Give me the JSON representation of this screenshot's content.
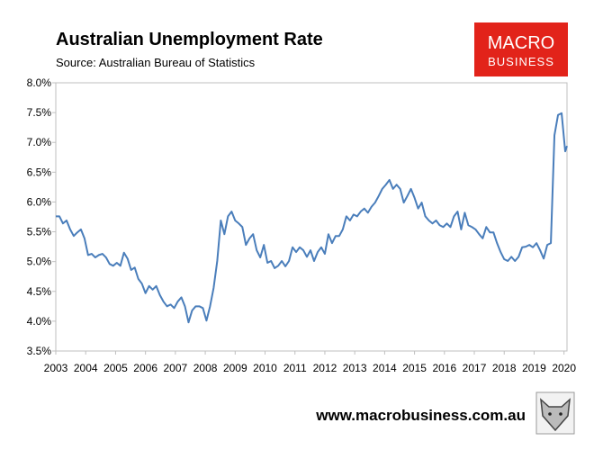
{
  "chart_data": {
    "type": "line",
    "title": "Australian Unemployment Rate",
    "subtitle": "Source: Australian Bureau of Statistics",
    "color": "#4a7ebb",
    "grid": false,
    "xlim": [
      2003,
      2020.1
    ],
    "xticks": [
      2003,
      2004,
      2005,
      2006,
      2007,
      2008,
      2009,
      2010,
      2011,
      2012,
      2013,
      2014,
      2015,
      2016,
      2017,
      2018,
      2019,
      2020
    ],
    "ylim": [
      3.5,
      8
    ],
    "yticks": [
      {
        "value": 3.5,
        "label": "3.5%"
      },
      {
        "value": 4,
        "label": "4.0%"
      },
      {
        "value": 4.5,
        "label": "4.5%"
      },
      {
        "value": 5,
        "label": "5.0%"
      },
      {
        "value": 5.5,
        "label": "5.5%"
      },
      {
        "value": 6,
        "label": "6.0%"
      },
      {
        "value": 6.5,
        "label": "6.5%"
      },
      {
        "value": 7,
        "label": "7.0%"
      },
      {
        "value": 7.5,
        "label": "7.5%"
      },
      {
        "value": 8,
        "label": "8.0%"
      }
    ],
    "x": [
      2003,
      2003.12,
      2003.24,
      2003.36,
      2003.48,
      2003.6,
      2003.72,
      2003.84,
      2003.96,
      2004.08,
      2004.2,
      2004.32,
      2004.44,
      2004.56,
      2004.68,
      2004.8,
      2004.92,
      2005.04,
      2005.16,
      2005.28,
      2005.4,
      2005.52,
      2005.64,
      2005.76,
      2005.88,
      2006,
      2006.12,
      2006.24,
      2006.36,
      2006.48,
      2006.6,
      2006.72,
      2006.84,
      2006.96,
      2007.08,
      2007.2,
      2007.32,
      2007.44,
      2007.56,
      2007.68,
      2007.8,
      2007.92,
      2008.04,
      2008.16,
      2008.28,
      2008.4,
      2008.52,
      2008.64,
      2008.76,
      2008.88,
      2009,
      2009.12,
      2009.24,
      2009.36,
      2009.48,
      2009.6,
      2009.72,
      2009.84,
      2009.96,
      2010.08,
      2010.2,
      2010.32,
      2010.44,
      2010.56,
      2010.68,
      2010.8,
      2010.92,
      2011.04,
      2011.16,
      2011.28,
      2011.4,
      2011.52,
      2011.64,
      2011.76,
      2011.88,
      2012,
      2012.12,
      2012.24,
      2012.36,
      2012.48,
      2012.6,
      2012.72,
      2012.84,
      2012.96,
      2013.08,
      2013.2,
      2013.32,
      2013.44,
      2013.56,
      2013.68,
      2013.8,
      2013.92,
      2014.04,
      2014.16,
      2014.28,
      2014.4,
      2014.52,
      2014.64,
      2014.76,
      2014.88,
      2015,
      2015.12,
      2015.24,
      2015.36,
      2015.48,
      2015.6,
      2015.72,
      2015.84,
      2015.96,
      2016.08,
      2016.2,
      2016.32,
      2016.44,
      2016.56,
      2016.68,
      2016.8,
      2016.92,
      2017.04,
      2017.16,
      2017.28,
      2017.4,
      2017.52,
      2017.64,
      2017.76,
      2017.88,
      2018,
      2018.12,
      2018.24,
      2018.36,
      2018.48,
      2018.6,
      2018.72,
      2018.84,
      2018.96,
      2019.08,
      2019.2,
      2019.32,
      2019.44,
      2019.56,
      2019.68,
      2019.8,
      2019.92,
      2020.04,
      2020.1
    ],
    "values": [
      5.76,
      5.76,
      5.64,
      5.69,
      5.54,
      5.43,
      5.49,
      5.54,
      5.39,
      5.11,
      5.13,
      5.07,
      5.11,
      5.13,
      5.07,
      4.96,
      4.93,
      4.98,
      4.93,
      5.15,
      5.05,
      4.86,
      4.9,
      4.71,
      4.63,
      4.47,
      4.59,
      4.53,
      4.59,
      4.44,
      4.33,
      4.25,
      4.28,
      4.22,
      4.33,
      4.4,
      4.25,
      3.98,
      4.18,
      4.25,
      4.25,
      4.22,
      4.01,
      4.25,
      4.56,
      5.01,
      5.69,
      5.46,
      5.76,
      5.84,
      5.69,
      5.64,
      5.58,
      5.28,
      5.39,
      5.46,
      5.19,
      5.07,
      5.28,
      4.98,
      5.01,
      4.89,
      4.93,
      5.01,
      4.92,
      5.01,
      5.24,
      5.16,
      5.24,
      5.19,
      5.08,
      5.19,
      5.01,
      5.16,
      5.24,
      5.13,
      5.46,
      5.31,
      5.43,
      5.43,
      5.54,
      5.76,
      5.69,
      5.79,
      5.76,
      5.84,
      5.89,
      5.82,
      5.92,
      5.99,
      6.1,
      6.22,
      6.29,
      6.37,
      6.22,
      6.29,
      6.22,
      5.99,
      6.1,
      6.22,
      6.07,
      5.89,
      5.99,
      5.76,
      5.69,
      5.64,
      5.69,
      5.61,
      5.58,
      5.64,
      5.58,
      5.76,
      5.84,
      5.54,
      5.82,
      5.61,
      5.58,
      5.54,
      5.46,
      5.39,
      5.58,
      5.49,
      5.49,
      5.31,
      5.16,
      5.04,
      5.01,
      5.08,
      5.01,
      5.08,
      5.24,
      5.25,
      5.28,
      5.24,
      5.31,
      5.19,
      5.05,
      5.28,
      5.31,
      7.12,
      7.46,
      7.49,
      6.85,
      6.94
    ]
  },
  "branding": {
    "logo_top": "MACRO",
    "logo_bottom": "BUSINESS",
    "website": "www.macrobusiness.com.au"
  }
}
